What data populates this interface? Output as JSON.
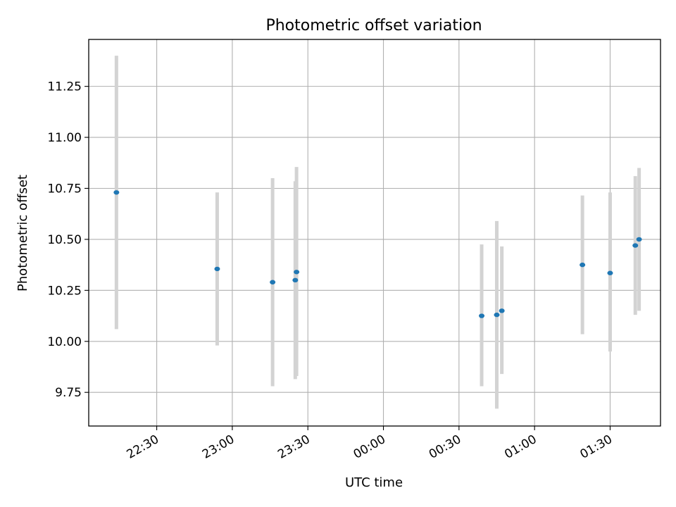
{
  "chart_data": {
    "type": "scatter",
    "title": "Photometric offset variation",
    "xlabel": "UTC time",
    "ylabel": "Photometric offset",
    "x_axis_type": "time",
    "xlim": [
      "22:03",
      "01:50"
    ],
    "ylim": [
      9.585,
      11.48
    ],
    "grid": true,
    "x_ticks": [
      "22:30",
      "23:00",
      "23:30",
      "00:00",
      "00:30",
      "01:00",
      "01:30"
    ],
    "y_ticks": [
      "9.75",
      "10.00",
      "10.25",
      "10.50",
      "10.75",
      "11.00",
      "11.25"
    ],
    "colors": {
      "point": "#1f77b4",
      "errorbar": "#d3d3d3",
      "grid": "#b0b0b0"
    },
    "points": [
      {
        "time": "22:14",
        "y": 10.73,
        "y_low": 10.06,
        "y_high": 11.4
      },
      {
        "time": "22:54",
        "y": 10.355,
        "y_low": 9.98,
        "y_high": 10.73
      },
      {
        "time": "23:16",
        "y": 10.29,
        "y_low": 9.78,
        "y_high": 10.8
      },
      {
        "time": "23:25",
        "y": 10.3,
        "y_low": 9.815,
        "y_high": 10.785
      },
      {
        "time": "23:25.5",
        "y": 10.34,
        "y_low": 9.83,
        "y_high": 10.855
      },
      {
        "time": "00:39",
        "y": 10.125,
        "y_low": 9.78,
        "y_high": 10.475
      },
      {
        "time": "00:45",
        "y": 10.13,
        "y_low": 9.67,
        "y_high": 10.59
      },
      {
        "time": "00:47",
        "y": 10.15,
        "y_low": 9.84,
        "y_high": 10.465
      },
      {
        "time": "01:19",
        "y": 10.375,
        "y_low": 10.035,
        "y_high": 10.715
      },
      {
        "time": "01:30",
        "y": 10.335,
        "y_low": 9.95,
        "y_high": 10.73
      },
      {
        "time": "01:40",
        "y": 10.47,
        "y_low": 10.13,
        "y_high": 10.81
      },
      {
        "time": "01:41.5",
        "y": 10.5,
        "y_low": 10.15,
        "y_high": 10.85
      }
    ]
  }
}
